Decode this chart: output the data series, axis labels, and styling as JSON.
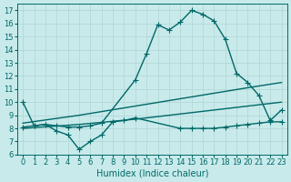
{
  "title": "",
  "xlabel": "Humidex (Indice chaleur)",
  "background_color": "#c8eaea",
  "line_color": "#006868",
  "xlim": [
    -0.5,
    23.5
  ],
  "ylim": [
    6,
    17.5
  ],
  "yticks": [
    6,
    7,
    8,
    9,
    10,
    11,
    12,
    13,
    14,
    15,
    16,
    17
  ],
  "xticks": [
    0,
    1,
    2,
    3,
    4,
    5,
    6,
    7,
    8,
    9,
    10,
    11,
    12,
    13,
    14,
    15,
    16,
    17,
    18,
    19,
    20,
    21,
    22,
    23
  ],
  "lines": [
    {
      "x": [
        0,
        1,
        2,
        3,
        4,
        5,
        6,
        7,
        10,
        11,
        12,
        13,
        14,
        15,
        16,
        17,
        18,
        19,
        20,
        21,
        22,
        23
      ],
      "y": [
        10,
        8.2,
        8.3,
        8.2,
        8.1,
        8.1,
        8.2,
        8.4,
        11.7,
        13.7,
        15.9,
        15.5,
        16.1,
        17.0,
        16.7,
        16.2,
        14.8,
        12.2,
        11.5,
        10.5,
        8.6,
        9.4
      ],
      "marker": "+",
      "markersize": 4,
      "linewidth": 1.0
    },
    {
      "x": [
        0,
        5,
        10,
        15,
        20,
        23
      ],
      "y": [
        8.4,
        9.0,
        9.7,
        10.4,
        11.1,
        11.5
      ],
      "marker": null,
      "markersize": 0,
      "linewidth": 1.0
    },
    {
      "x": [
        0,
        5,
        10,
        15,
        20,
        23
      ],
      "y": [
        8.0,
        8.3,
        8.7,
        9.2,
        9.7,
        10.0
      ],
      "marker": null,
      "markersize": 0,
      "linewidth": 1.0
    },
    {
      "x": [
        0,
        1,
        2,
        3,
        4,
        5,
        6,
        7,
        8,
        9,
        10,
        14,
        15,
        16,
        17,
        18,
        19,
        20,
        21,
        22,
        23
      ],
      "y": [
        8.1,
        8.2,
        8.3,
        7.8,
        7.5,
        6.4,
        7.0,
        7.5,
        8.5,
        8.6,
        8.8,
        8.0,
        8.0,
        8.0,
        8.0,
        8.1,
        8.2,
        8.3,
        8.4,
        8.5,
        8.5
      ],
      "marker": "+",
      "markersize": 4,
      "linewidth": 1.0
    }
  ],
  "grid_color": "#b0d4d4",
  "tick_fontsize": 6,
  "label_fontsize": 7
}
